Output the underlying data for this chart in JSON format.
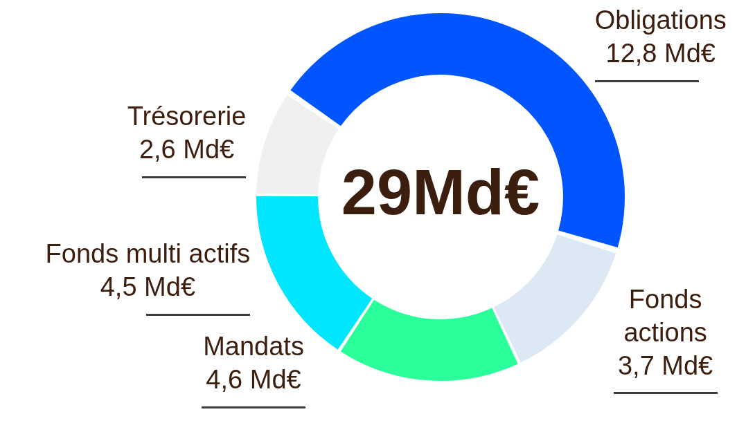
{
  "chart_data": {
    "type": "donut",
    "title": "29Md€",
    "categories": [
      "Obligations",
      "Fonds actions",
      "Mandats",
      "Fonds multi actifs",
      "Trésorerie"
    ],
    "values": [
      12.8,
      3.7,
      4.6,
      4.5,
      2.6
    ],
    "colors": [
      "#0055ff",
      "#dce8f4",
      "#2bff9b",
      "#00e6ff",
      "#f0f0f0"
    ],
    "value_labels": [
      "12,8 Md€",
      "3,7 Md€",
      "4,6 Md€",
      "4,5 Md€",
      "2,6 Md€"
    ]
  }
}
